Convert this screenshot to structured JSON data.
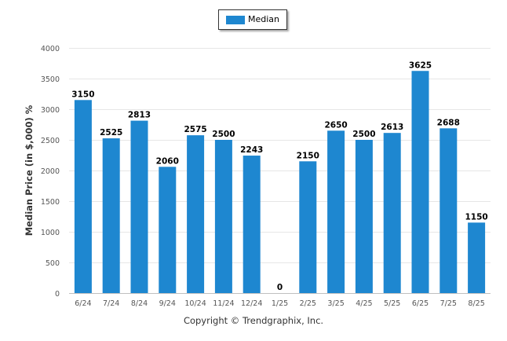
{
  "colors": {
    "bar": "#1e87d0",
    "grid": "#e6e6e6",
    "axis": "#c0c0c0",
    "text": "#555555"
  },
  "legend": {
    "label": "Median"
  },
  "credit": "Copyright © Trendgraphix, Inc.",
  "chart_data": {
    "type": "bar",
    "title": "",
    "xlabel": "",
    "ylabel": "Median Price (in $,000) %",
    "ylim": [
      0,
      4000
    ],
    "yticks": [
      0,
      500,
      1000,
      1500,
      2000,
      2500,
      3000,
      3500,
      4000
    ],
    "grid": true,
    "legend_position": "top-center",
    "categories": [
      "6/24",
      "7/24",
      "8/24",
      "9/24",
      "10/24",
      "11/24",
      "12/24",
      "1/25",
      "2/25",
      "3/25",
      "4/25",
      "5/25",
      "6/25",
      "7/25",
      "8/25"
    ],
    "series": [
      {
        "name": "Median",
        "values": [
          3150,
          2525,
          2813,
          2060,
          2575,
          2500,
          2243,
          0,
          2150,
          2650,
          2500,
          2613,
          3625,
          2688,
          1150
        ]
      }
    ]
  }
}
